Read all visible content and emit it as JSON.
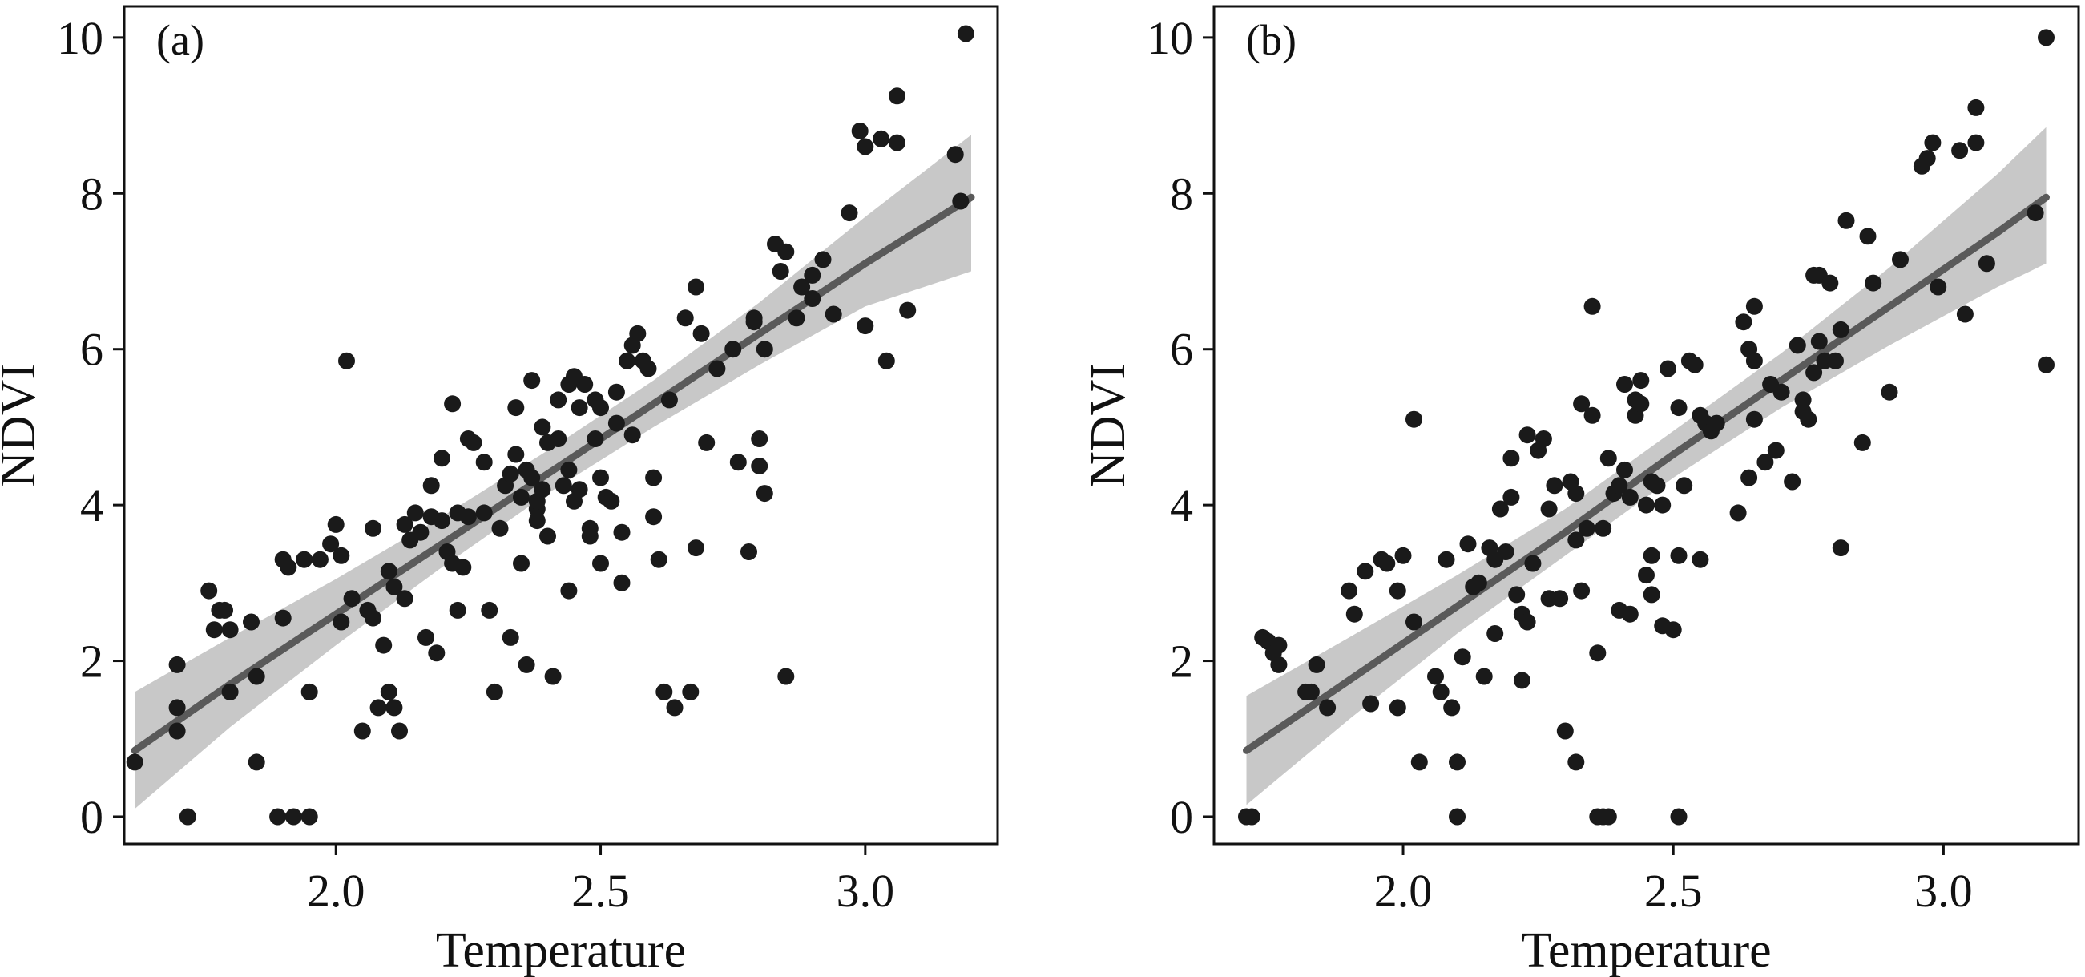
{
  "chart_data": [
    {
      "type": "scatter",
      "panel_label": "(a)",
      "xlabel": "Temperature",
      "ylabel": "NDVI",
      "xlim": [
        1.6,
        3.25
      ],
      "ylim": [
        -0.35,
        10.4
      ],
      "xticks": [
        2.0,
        2.5,
        3.0
      ],
      "xtick_labels": [
        "2.0",
        "2.5",
        "3.0"
      ],
      "yticks": [
        0,
        2,
        4,
        6,
        8,
        10
      ],
      "ytick_labels": [
        "0",
        "2",
        "4",
        "6",
        "8",
        "10"
      ],
      "grid": false,
      "regression": {
        "x": [
          1.62,
          1.8,
          2.0,
          2.2,
          2.4,
          2.6,
          2.8,
          3.0,
          3.2
        ],
        "fit": [
          0.85,
          1.7,
          2.6,
          3.5,
          4.4,
          5.3,
          6.2,
          7.1,
          7.95
        ],
        "lower": [
          0.1,
          1.15,
          2.2,
          3.2,
          4.15,
          5.0,
          5.8,
          6.55,
          7.0
        ],
        "upper": [
          1.6,
          2.3,
          3.05,
          3.85,
          4.7,
          5.6,
          6.6,
          7.7,
          8.75
        ]
      },
      "points": [
        [
          1.62,
          0.7
        ],
        [
          1.7,
          1.95
        ],
        [
          1.7,
          1.4
        ],
        [
          1.7,
          1.1
        ],
        [
          1.72,
          0.0
        ],
        [
          1.76,
          2.9
        ],
        [
          1.77,
          2.4
        ],
        [
          1.78,
          2.65
        ],
        [
          1.79,
          2.65
        ],
        [
          1.8,
          2.4
        ],
        [
          1.8,
          1.6
        ],
        [
          1.84,
          2.5
        ],
        [
          1.85,
          1.8
        ],
        [
          1.85,
          0.7
        ],
        [
          1.89,
          0.0
        ],
        [
          1.9,
          3.3
        ],
        [
          1.9,
          2.55
        ],
        [
          1.91,
          3.2
        ],
        [
          1.92,
          0.0
        ],
        [
          1.94,
          3.3
        ],
        [
          1.95,
          0.0
        ],
        [
          1.95,
          1.6
        ],
        [
          1.97,
          3.3
        ],
        [
          1.99,
          3.5
        ],
        [
          2.0,
          3.75
        ],
        [
          2.01,
          3.35
        ],
        [
          2.01,
          2.5
        ],
        [
          2.02,
          5.85
        ],
        [
          2.03,
          2.8
        ],
        [
          2.05,
          1.1
        ],
        [
          2.06,
          2.65
        ],
        [
          2.07,
          2.55
        ],
        [
          2.07,
          3.7
        ],
        [
          2.08,
          1.4
        ],
        [
          2.09,
          2.2
        ],
        [
          2.1,
          1.6
        ],
        [
          2.1,
          3.15
        ],
        [
          2.11,
          1.4
        ],
        [
          2.11,
          2.95
        ],
        [
          2.12,
          1.1
        ],
        [
          2.13,
          3.75
        ],
        [
          2.13,
          2.8
        ],
        [
          2.14,
          3.55
        ],
        [
          2.15,
          3.9
        ],
        [
          2.16,
          3.65
        ],
        [
          2.17,
          2.3
        ],
        [
          2.18,
          3.85
        ],
        [
          2.18,
          4.25
        ],
        [
          2.19,
          2.1
        ],
        [
          2.2,
          4.6
        ],
        [
          2.2,
          3.8
        ],
        [
          2.21,
          3.4
        ],
        [
          2.22,
          3.25
        ],
        [
          2.22,
          5.3
        ],
        [
          2.23,
          3.9
        ],
        [
          2.23,
          2.65
        ],
        [
          2.24,
          3.2
        ],
        [
          2.25,
          3.85
        ],
        [
          2.25,
          4.85
        ],
        [
          2.26,
          4.8
        ],
        [
          2.28,
          4.55
        ],
        [
          2.28,
          3.9
        ],
        [
          2.29,
          2.65
        ],
        [
          2.3,
          1.6
        ],
        [
          2.31,
          3.7
        ],
        [
          2.32,
          4.25
        ],
        [
          2.33,
          2.3
        ],
        [
          2.33,
          4.4
        ],
        [
          2.34,
          4.65
        ],
        [
          2.34,
          5.25
        ],
        [
          2.35,
          3.25
        ],
        [
          2.35,
          4.1
        ],
        [
          2.36,
          4.45
        ],
        [
          2.36,
          1.95
        ],
        [
          2.37,
          4.35
        ],
        [
          2.37,
          5.6
        ],
        [
          2.38,
          3.8
        ],
        [
          2.38,
          3.95
        ],
        [
          2.38,
          4.05
        ],
        [
          2.39,
          4.2
        ],
        [
          2.39,
          5.0
        ],
        [
          2.4,
          3.6
        ],
        [
          2.4,
          4.8
        ],
        [
          2.41,
          1.8
        ],
        [
          2.42,
          5.35
        ],
        [
          2.42,
          4.85
        ],
        [
          2.43,
          4.25
        ],
        [
          2.44,
          4.45
        ],
        [
          2.44,
          2.9
        ],
        [
          2.44,
          5.55
        ],
        [
          2.45,
          4.05
        ],
        [
          2.45,
          5.65
        ],
        [
          2.46,
          5.25
        ],
        [
          2.46,
          4.2
        ],
        [
          2.47,
          5.55
        ],
        [
          2.48,
          3.6
        ],
        [
          2.48,
          3.7
        ],
        [
          2.49,
          4.85
        ],
        [
          2.49,
          5.35
        ],
        [
          2.5,
          4.35
        ],
        [
          2.5,
          5.25
        ],
        [
          2.5,
          3.25
        ],
        [
          2.51,
          4.1
        ],
        [
          2.52,
          4.05
        ],
        [
          2.53,
          5.45
        ],
        [
          2.53,
          5.05
        ],
        [
          2.54,
          3.65
        ],
        [
          2.54,
          3.0
        ],
        [
          2.55,
          5.85
        ],
        [
          2.56,
          6.05
        ],
        [
          2.56,
          4.9
        ],
        [
          2.57,
          6.2
        ],
        [
          2.58,
          5.85
        ],
        [
          2.59,
          5.75
        ],
        [
          2.6,
          4.35
        ],
        [
          2.6,
          3.85
        ],
        [
          2.61,
          3.3
        ],
        [
          2.62,
          1.6
        ],
        [
          2.63,
          5.35
        ],
        [
          2.64,
          1.4
        ],
        [
          2.66,
          6.4
        ],
        [
          2.67,
          1.6
        ],
        [
          2.68,
          6.8
        ],
        [
          2.68,
          3.45
        ],
        [
          2.69,
          6.2
        ],
        [
          2.7,
          4.8
        ],
        [
          2.72,
          5.75
        ],
        [
          2.75,
          6.0
        ],
        [
          2.76,
          4.55
        ],
        [
          2.78,
          3.4
        ],
        [
          2.79,
          6.4
        ],
        [
          2.79,
          6.35
        ],
        [
          2.8,
          4.85
        ],
        [
          2.8,
          4.5
        ],
        [
          2.81,
          6.0
        ],
        [
          2.81,
          4.15
        ],
        [
          2.83,
          7.35
        ],
        [
          2.84,
          7.0
        ],
        [
          2.85,
          7.25
        ],
        [
          2.85,
          1.8
        ],
        [
          2.87,
          6.4
        ],
        [
          2.88,
          6.8
        ],
        [
          2.9,
          6.65
        ],
        [
          2.9,
          6.95
        ],
        [
          2.92,
          7.15
        ],
        [
          2.94,
          6.45
        ],
        [
          2.97,
          7.75
        ],
        [
          2.99,
          8.8
        ],
        [
          3.0,
          8.6
        ],
        [
          3.0,
          6.3
        ],
        [
          3.03,
          8.7
        ],
        [
          3.04,
          5.85
        ],
        [
          3.06,
          8.65
        ],
        [
          3.06,
          9.25
        ],
        [
          3.08,
          6.5
        ],
        [
          3.17,
          8.5
        ],
        [
          3.18,
          7.9
        ],
        [
          3.19,
          10.05
        ]
      ]
    },
    {
      "type": "scatter",
      "panel_label": "(b)",
      "xlabel": "Temperature",
      "ylabel": "NDVI",
      "xlim": [
        1.65,
        3.25
      ],
      "ylim": [
        -0.35,
        10.4
      ],
      "xticks": [
        2.0,
        2.5,
        3.0
      ],
      "xtick_labels": [
        "2.0",
        "2.5",
        "3.0"
      ],
      "yticks": [
        0,
        2,
        4,
        6,
        8,
        10
      ],
      "ytick_labels": [
        "0",
        "2",
        "4",
        "6",
        "8",
        "10"
      ],
      "grid": false,
      "regression": {
        "x": [
          1.71,
          1.9,
          2.1,
          2.3,
          2.5,
          2.7,
          2.9,
          3.1,
          3.19
        ],
        "fit": [
          0.85,
          1.75,
          2.7,
          3.65,
          4.65,
          5.6,
          6.55,
          7.5,
          7.95
        ],
        "lower": [
          0.15,
          1.25,
          2.35,
          3.35,
          4.35,
          5.25,
          6.05,
          6.8,
          7.1
        ],
        "upper": [
          1.55,
          2.3,
          3.1,
          3.95,
          4.95,
          5.95,
          7.05,
          8.25,
          8.85
        ]
      },
      "points": [
        [
          1.71,
          0.0
        ],
        [
          1.72,
          0.0
        ],
        [
          1.74,
          2.3
        ],
        [
          1.75,
          2.25
        ],
        [
          1.76,
          2.1
        ],
        [
          1.77,
          1.95
        ],
        [
          1.77,
          2.2
        ],
        [
          1.82,
          1.6
        ],
        [
          1.83,
          1.6
        ],
        [
          1.84,
          1.95
        ],
        [
          1.86,
          1.4
        ],
        [
          1.9,
          2.9
        ],
        [
          1.91,
          2.6
        ],
        [
          1.93,
          3.15
        ],
        [
          1.94,
          1.45
        ],
        [
          1.96,
          3.3
        ],
        [
          1.97,
          3.25
        ],
        [
          1.99,
          1.4
        ],
        [
          1.99,
          2.9
        ],
        [
          2.0,
          3.35
        ],
        [
          2.02,
          5.1
        ],
        [
          2.02,
          2.5
        ],
        [
          2.03,
          0.7
        ],
        [
          2.06,
          1.8
        ],
        [
          2.07,
          1.6
        ],
        [
          2.08,
          3.3
        ],
        [
          2.09,
          1.4
        ],
        [
          2.1,
          0.0
        ],
        [
          2.1,
          0.7
        ],
        [
          2.11,
          2.05
        ],
        [
          2.12,
          3.5
        ],
        [
          2.13,
          2.95
        ],
        [
          2.14,
          3.0
        ],
        [
          2.15,
          1.8
        ],
        [
          2.16,
          3.45
        ],
        [
          2.17,
          3.3
        ],
        [
          2.17,
          2.35
        ],
        [
          2.18,
          3.95
        ],
        [
          2.19,
          3.4
        ],
        [
          2.2,
          4.6
        ],
        [
          2.2,
          4.1
        ],
        [
          2.21,
          2.85
        ],
        [
          2.22,
          2.6
        ],
        [
          2.22,
          1.75
        ],
        [
          2.23,
          2.5
        ],
        [
          2.23,
          4.9
        ],
        [
          2.24,
          3.25
        ],
        [
          2.25,
          4.7
        ],
        [
          2.26,
          4.85
        ],
        [
          2.27,
          3.95
        ],
        [
          2.27,
          2.8
        ],
        [
          2.28,
          4.25
        ],
        [
          2.29,
          2.8
        ],
        [
          2.3,
          1.1
        ],
        [
          2.31,
          4.3
        ],
        [
          2.32,
          0.7
        ],
        [
          2.32,
          3.55
        ],
        [
          2.32,
          4.15
        ],
        [
          2.33,
          5.3
        ],
        [
          2.33,
          2.9
        ],
        [
          2.34,
          3.7
        ],
        [
          2.35,
          5.15
        ],
        [
          2.35,
          6.55
        ],
        [
          2.36,
          0.0
        ],
        [
          2.36,
          2.1
        ],
        [
          2.37,
          0.0
        ],
        [
          2.37,
          3.7
        ],
        [
          2.38,
          4.6
        ],
        [
          2.38,
          0.0
        ],
        [
          2.39,
          4.15
        ],
        [
          2.4,
          4.25
        ],
        [
          2.4,
          2.65
        ],
        [
          2.41,
          5.55
        ],
        [
          2.41,
          4.45
        ],
        [
          2.42,
          4.1
        ],
        [
          2.42,
          2.6
        ],
        [
          2.43,
          5.15
        ],
        [
          2.43,
          5.35
        ],
        [
          2.44,
          5.6
        ],
        [
          2.44,
          5.3
        ],
        [
          2.45,
          3.1
        ],
        [
          2.45,
          4.0
        ],
        [
          2.46,
          3.35
        ],
        [
          2.46,
          2.85
        ],
        [
          2.46,
          4.3
        ],
        [
          2.47,
          4.25
        ],
        [
          2.48,
          4.0
        ],
        [
          2.48,
          2.45
        ],
        [
          2.49,
          5.75
        ],
        [
          2.5,
          2.4
        ],
        [
          2.51,
          3.35
        ],
        [
          2.51,
          0.0
        ],
        [
          2.51,
          5.25
        ],
        [
          2.52,
          4.25
        ],
        [
          2.53,
          5.85
        ],
        [
          2.54,
          5.8
        ],
        [
          2.55,
          5.15
        ],
        [
          2.55,
          3.3
        ],
        [
          2.56,
          5.05
        ],
        [
          2.57,
          4.95
        ],
        [
          2.58,
          5.05
        ],
        [
          2.62,
          3.9
        ],
        [
          2.63,
          6.35
        ],
        [
          2.64,
          6.0
        ],
        [
          2.64,
          4.35
        ],
        [
          2.65,
          6.55
        ],
        [
          2.65,
          5.1
        ],
        [
          2.65,
          5.85
        ],
        [
          2.67,
          4.55
        ],
        [
          2.68,
          5.55
        ],
        [
          2.69,
          4.7
        ],
        [
          2.7,
          5.45
        ],
        [
          2.72,
          4.3
        ],
        [
          2.73,
          6.05
        ],
        [
          2.74,
          5.35
        ],
        [
          2.74,
          5.2
        ],
        [
          2.75,
          5.1
        ],
        [
          2.76,
          6.95
        ],
        [
          2.76,
          5.7
        ],
        [
          2.77,
          6.1
        ],
        [
          2.77,
          6.95
        ],
        [
          2.78,
          5.85
        ],
        [
          2.79,
          6.85
        ],
        [
          2.8,
          5.85
        ],
        [
          2.81,
          6.25
        ],
        [
          2.81,
          3.45
        ],
        [
          2.82,
          7.65
        ],
        [
          2.85,
          4.8
        ],
        [
          2.86,
          7.45
        ],
        [
          2.87,
          6.85
        ],
        [
          2.9,
          5.45
        ],
        [
          2.92,
          7.15
        ],
        [
          2.96,
          8.35
        ],
        [
          2.97,
          8.45
        ],
        [
          2.98,
          8.65
        ],
        [
          2.99,
          6.8
        ],
        [
          3.03,
          8.55
        ],
        [
          3.04,
          6.45
        ],
        [
          3.06,
          9.1
        ],
        [
          3.06,
          8.65
        ],
        [
          3.08,
          7.1
        ],
        [
          3.17,
          7.75
        ],
        [
          3.19,
          5.8
        ],
        [
          3.19,
          10.0
        ]
      ]
    }
  ]
}
